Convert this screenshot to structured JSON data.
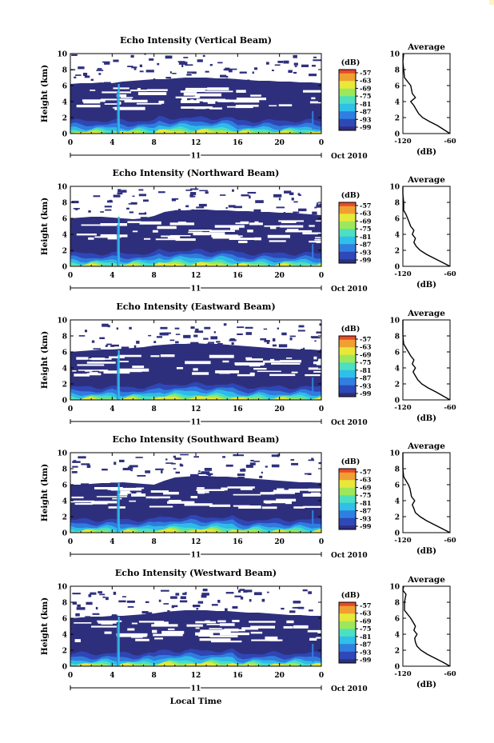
{
  "figure": {
    "x_axis_label": "Local Time",
    "accent_colors": [
      "#2e2f7c",
      "#2f48b8",
      "#2f7fe0",
      "#2fbfe8",
      "#4de0c0",
      "#9de85a",
      "#e8e83a",
      "#f0a030",
      "#e84a2a"
    ]
  },
  "chart_data": [
    {
      "type": "heatmap",
      "title": "Echo Intensity (Vertical Beam)",
      "ylabel": "Height (km)",
      "ylim": [
        0,
        10
      ],
      "yticks": [
        "0",
        "2",
        "4",
        "6",
        "8",
        "10"
      ],
      "xlim": [
        0,
        24
      ],
      "xticks": [
        "0",
        "4",
        "8",
        "12",
        "16",
        "20",
        "0"
      ],
      "date_day": "11",
      "date_label": "Oct 2010",
      "colorbar": {
        "unit": "(dB)",
        "levels": [
          "-57",
          "-63",
          "-69",
          "-75",
          "-81",
          "-87",
          "-93",
          "-99"
        ]
      },
      "echo_top_km": [
        6.2,
        6.3,
        6.3,
        6.4,
        6.3,
        6.5,
        6.6,
        6.7,
        6.8,
        6.8,
        6.9,
        7.0,
        7.0,
        7.0,
        6.9,
        6.9,
        6.8,
        6.7,
        6.6,
        6.6,
        6.5,
        6.5,
        6.4,
        6.4,
        6.3
      ],
      "scattered_top_km": 10.0,
      "average_profile": {
        "title": "Average",
        "xlabel": "(dB)",
        "xlim": [
          -120,
          -60
        ],
        "xticks": [
          "-120",
          "-60"
        ],
        "ylim": [
          0,
          10
        ],
        "yticks": [
          "0",
          "2",
          "4",
          "6",
          "8",
          "10"
        ],
        "height_km": [
          0,
          0.5,
          1,
          1.5,
          2,
          2.5,
          3,
          3.5,
          4,
          4.5,
          5,
          5.5,
          6,
          6.5,
          7,
          8,
          9,
          10
        ],
        "db": [
          -60,
          -68,
          -76,
          -86,
          -95,
          -100,
          -103,
          -106,
          -110,
          -104,
          -108,
          -109,
          -110,
          -114,
          -118,
          -119,
          -120,
          -119
        ]
      }
    },
    {
      "type": "heatmap",
      "title": "Echo Intensity (Northward Beam)",
      "ylabel": "Height (km)",
      "ylim": [
        0,
        10
      ],
      "yticks": [
        "0",
        "2",
        "4",
        "6",
        "8",
        "10"
      ],
      "xlim": [
        0,
        24
      ],
      "xticks": [
        "0",
        "4",
        "8",
        "12",
        "16",
        "20",
        "0"
      ],
      "date_day": "11",
      "date_label": "Oct 2010",
      "colorbar": {
        "unit": "(dB)",
        "levels": [
          "-57",
          "-63",
          "-69",
          "-75",
          "-81",
          "-87",
          "-93",
          "-99"
        ]
      },
      "echo_top_km": [
        6.0,
        6.1,
        6.2,
        6.2,
        6.1,
        6.0,
        5.9,
        6.0,
        6.3,
        6.8,
        7.0,
        7.0,
        7.1,
        7.1,
        7.0,
        7.0,
        6.9,
        6.9,
        6.8,
        6.8,
        6.7,
        6.7,
        6.6,
        6.5,
        6.4
      ],
      "scattered_top_km": 9.8,
      "average_profile": {
        "title": "Average",
        "xlabel": "(dB)",
        "xlim": [
          -120,
          -60
        ],
        "xticks": [
          "-120",
          "-60"
        ],
        "ylim": [
          0,
          10
        ],
        "yticks": [
          "0",
          "2",
          "4",
          "6",
          "8",
          "10"
        ],
        "height_km": [
          0,
          0.5,
          1,
          1.5,
          2,
          2.5,
          3,
          3.5,
          4,
          4.5,
          5,
          5.5,
          6,
          6.5,
          7,
          8,
          9,
          10
        ],
        "db": [
          -60,
          -70,
          -80,
          -90,
          -98,
          -103,
          -106,
          -104,
          -108,
          -106,
          -110,
          -112,
          -114,
          -116,
          -119,
          -119,
          -120,
          -120
        ]
      }
    },
    {
      "type": "heatmap",
      "title": "Echo Intensity (Eastward Beam)",
      "ylabel": "Height (km)",
      "ylim": [
        0,
        10
      ],
      "yticks": [
        "0",
        "2",
        "4",
        "6",
        "8",
        "10"
      ],
      "xlim": [
        0,
        24
      ],
      "xticks": [
        "0",
        "4",
        "8",
        "12",
        "16",
        "20",
        "0"
      ],
      "date_day": "11",
      "date_label": "Oct 2010",
      "colorbar": {
        "unit": "(dB)",
        "levels": [
          "-57",
          "-63",
          "-69",
          "-75",
          "-81",
          "-87",
          "-93",
          "-99"
        ]
      },
      "echo_top_km": [
        6.0,
        6.1,
        6.2,
        6.3,
        6.3,
        6.4,
        6.5,
        6.6,
        6.8,
        6.9,
        7.0,
        7.0,
        7.1,
        7.0,
        7.0,
        6.9,
        6.8,
        6.7,
        6.6,
        6.5,
        6.4,
        6.4,
        6.3,
        6.3,
        6.2
      ],
      "scattered_top_km": 9.8,
      "average_profile": {
        "title": "Average",
        "xlabel": "(dB)",
        "xlim": [
          -120,
          -60
        ],
        "xticks": [
          "-120",
          "-60"
        ],
        "ylim": [
          0,
          10
        ],
        "yticks": [
          "0",
          "2",
          "4",
          "6",
          "8",
          "10"
        ],
        "height_km": [
          0,
          0.5,
          1,
          1.5,
          2,
          2.5,
          3,
          3.5,
          4,
          4.5,
          5,
          5.5,
          6,
          6.5,
          7,
          8,
          9,
          10
        ],
        "db": [
          -60,
          -69,
          -78,
          -88,
          -96,
          -101,
          -104,
          -107,
          -104,
          -108,
          -106,
          -110,
          -113,
          -116,
          -119,
          -120,
          -120,
          -120
        ]
      }
    },
    {
      "type": "heatmap",
      "title": "Echo Intensity (Southward Beam)",
      "ylabel": "Height (km)",
      "ylim": [
        0,
        10
      ],
      "yticks": [
        "0",
        "2",
        "4",
        "6",
        "8",
        "10"
      ],
      "xlim": [
        0,
        24
      ],
      "xticks": [
        "0",
        "4",
        "8",
        "12",
        "16",
        "20",
        "0"
      ],
      "date_day": "11",
      "date_label": "Oct 2010",
      "colorbar": {
        "unit": "(dB)",
        "levels": [
          "-57",
          "-63",
          "-69",
          "-75",
          "-81",
          "-87",
          "-93",
          "-99"
        ]
      },
      "echo_top_km": [
        6.0,
        6.0,
        6.1,
        6.2,
        6.2,
        6.3,
        6.2,
        6.1,
        6.0,
        6.5,
        6.9,
        7.0,
        7.1,
        7.1,
        7.0,
        7.0,
        6.9,
        6.8,
        6.7,
        6.6,
        6.5,
        6.4,
        6.3,
        6.3,
        6.2
      ],
      "scattered_top_km": 9.9,
      "average_profile": {
        "title": "Average",
        "xlabel": "(dB)",
        "xlim": [
          -120,
          -60
        ],
        "xticks": [
          "-120",
          "-60"
        ],
        "ylim": [
          0,
          10
        ],
        "yticks": [
          "0",
          "2",
          "4",
          "6",
          "8",
          "10"
        ],
        "height_km": [
          0,
          0.5,
          1,
          1.5,
          2,
          2.5,
          3,
          3.5,
          4,
          4.5,
          5,
          5.5,
          6,
          6.5,
          7,
          8,
          9,
          10
        ],
        "db": [
          -60,
          -70,
          -80,
          -90,
          -98,
          -104,
          -106,
          -108,
          -105,
          -109,
          -110,
          -111,
          -113,
          -116,
          -119,
          -120,
          -120,
          -120
        ]
      }
    },
    {
      "type": "heatmap",
      "title": "Echo Intensity (Westward Beam)",
      "ylabel": "Height (km)",
      "ylim": [
        0,
        10
      ],
      "yticks": [
        "0",
        "2",
        "4",
        "6",
        "8",
        "10"
      ],
      "xlim": [
        0,
        24
      ],
      "xticks": [
        "0",
        "4",
        "8",
        "12",
        "16",
        "20",
        "0"
      ],
      "date_day": "11",
      "date_label": "Oct 2010",
      "colorbar": {
        "unit": "(dB)",
        "levels": [
          "-57",
          "-63",
          "-69",
          "-75",
          "-81",
          "-87",
          "-93",
          "-99"
        ]
      },
      "echo_top_km": [
        6.0,
        6.1,
        6.2,
        6.2,
        6.3,
        6.3,
        6.4,
        6.5,
        6.6,
        6.8,
        6.9,
        7.0,
        7.0,
        7.0,
        6.9,
        6.9,
        6.8,
        6.7,
        6.7,
        6.6,
        6.5,
        6.4,
        6.4,
        6.3,
        6.3
      ],
      "scattered_top_km": 9.7,
      "average_profile": {
        "title": "Average",
        "xlabel": "(dB)",
        "xlim": [
          -120,
          -60
        ],
        "xticks": [
          "-120",
          "-60"
        ],
        "ylim": [
          0,
          10
        ],
        "yticks": [
          "0",
          "2",
          "4",
          "6",
          "8",
          "10"
        ],
        "height_km": [
          0,
          0.5,
          1,
          1.5,
          2,
          2.5,
          3,
          3.5,
          4,
          4.5,
          5,
          5.5,
          6,
          6.5,
          7,
          8,
          9,
          9.5,
          10
        ],
        "db": [
          -60,
          -69,
          -79,
          -89,
          -97,
          -102,
          -104,
          -105,
          -102,
          -106,
          -104,
          -107,
          -110,
          -114,
          -118,
          -118,
          -116,
          -120,
          -119
        ]
      }
    }
  ]
}
